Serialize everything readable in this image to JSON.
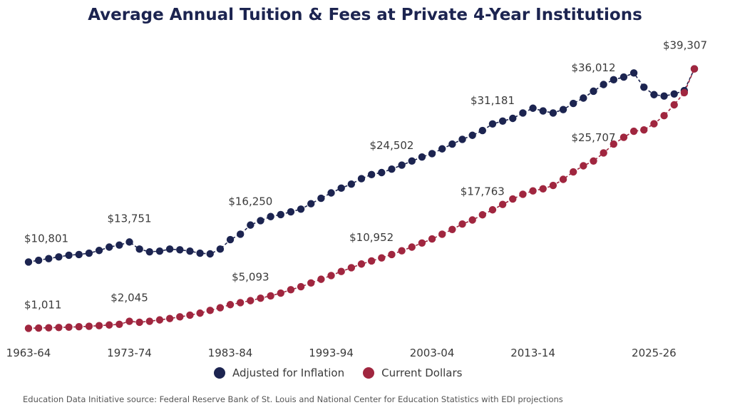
{
  "chart_data": {
    "type": "line",
    "title": "Average Annual Tuition & Fees at Private 4-Year Institutions",
    "xlabel": "",
    "ylabel": "",
    "ylim": [
      0,
      40000
    ],
    "x_start_year": 1963,
    "tick_labels": [
      "1963-64",
      "1973-74",
      "1983-84",
      "1993-94",
      "2003-04",
      "2013-14",
      "2025-26"
    ],
    "tick_indices": [
      0,
      10,
      20,
      30,
      40,
      50,
      62
    ],
    "series": [
      {
        "name": "Adjusted for Inflation",
        "color": "#1c2450",
        "values": [
          10801,
          11050,
          11300,
          11550,
          11800,
          11900,
          12100,
          12500,
          13000,
          13300,
          13751,
          12700,
          12300,
          12400,
          12700,
          12600,
          12400,
          12100,
          12000,
          12700,
          14100,
          14900,
          16250,
          16900,
          17500,
          17800,
          18200,
          18600,
          19400,
          20200,
          21000,
          21700,
          22300,
          23100,
          23700,
          24000,
          24502,
          25100,
          25700,
          26300,
          26800,
          27500,
          28200,
          28900,
          29500,
          30200,
          31181,
          31600,
          32000,
          32800,
          33500,
          33100,
          32800,
          33300,
          34200,
          35000,
          36012,
          37000,
          37700,
          38100,
          38700,
          36600,
          35500,
          35300,
          35600,
          36100,
          39307
        ]
      },
      {
        "name": "Current Dollars",
        "color": "#a0263f",
        "values": [
          1011,
          1050,
          1090,
          1130,
          1180,
          1240,
          1310,
          1400,
          1500,
          1600,
          2045,
          1900,
          2050,
          2250,
          2450,
          2700,
          2950,
          3250,
          3650,
          4050,
          4500,
          4800,
          5093,
          5450,
          5800,
          6200,
          6700,
          7150,
          7700,
          8250,
          8800,
          9400,
          9950,
          10500,
          10952,
          11400,
          11900,
          12450,
          13000,
          13600,
          14200,
          14900,
          15600,
          16400,
          17000,
          17763,
          18500,
          19300,
          20100,
          20800,
          21300,
          21600,
          22100,
          23000,
          24100,
          25000,
          25707,
          26900,
          28200,
          29200,
          30100,
          30300,
          31200,
          32400,
          34000,
          35800,
          39307
        ]
      }
    ],
    "annotations": [
      {
        "series": 0,
        "index": 0,
        "text": "$10,801"
      },
      {
        "series": 0,
        "index": 10,
        "text": "$13,751"
      },
      {
        "series": 0,
        "index": 22,
        "text": "$16,250"
      },
      {
        "series": 0,
        "index": 36,
        "text": "$24,502"
      },
      {
        "series": 0,
        "index": 46,
        "text": "$31,181"
      },
      {
        "series": 0,
        "index": 56,
        "text": "$36,012"
      },
      {
        "series": 0,
        "index": 66,
        "text": "$39,307"
      },
      {
        "series": 1,
        "index": 0,
        "text": "$1,011"
      },
      {
        "series": 1,
        "index": 10,
        "text": "$2,045"
      },
      {
        "series": 1,
        "index": 22,
        "text": "$5,093"
      },
      {
        "series": 1,
        "index": 34,
        "text": "$10,952"
      },
      {
        "series": 1,
        "index": 45,
        "text": "$17,763"
      },
      {
        "series": 1,
        "index": 56,
        "text": "$25,707"
      }
    ],
    "legend": [
      {
        "label": "Adjusted for Inflation",
        "color": "#1c2450"
      },
      {
        "label": "Current Dollars",
        "color": "#a0263f"
      }
    ]
  },
  "source": "Education Data Initiative source: Federal Reserve Bank of St. Louis and National Center for Education Statistics with EDI projections"
}
